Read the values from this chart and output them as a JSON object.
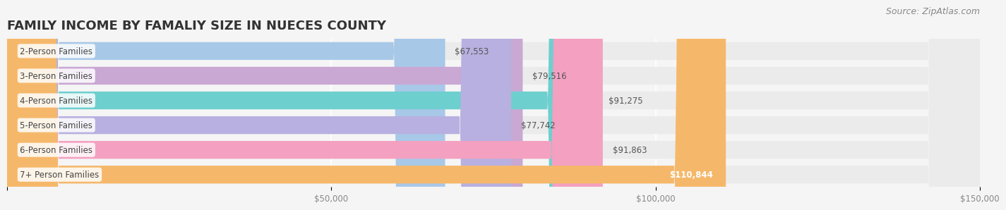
{
  "title": "FAMILY INCOME BY FAMALIY SIZE IN NUECES COUNTY",
  "source": "Source: ZipAtlas.com",
  "categories": [
    "2-Person Families",
    "3-Person Families",
    "4-Person Families",
    "5-Person Families",
    "6-Person Families",
    "7+ Person Families"
  ],
  "values": [
    67553,
    79516,
    91275,
    77742,
    91863,
    110844
  ],
  "bar_colors": [
    "#a8c8e8",
    "#c9a8d4",
    "#6ecfcf",
    "#b8b0e0",
    "#f4a0c0",
    "#f5b86a"
  ],
  "label_colors": [
    "#a8c8e8",
    "#c9a8d4",
    "#6ecfcf",
    "#b8b0e0",
    "#f4a0c0",
    "#f5b86a"
  ],
  "value_labels": [
    "$67,553",
    "$79,516",
    "$91,275",
    "$77,742",
    "$91,863",
    "$110,844"
  ],
  "xlim": [
    0,
    150000
  ],
  "xticks": [
    0,
    50000,
    100000,
    150000
  ],
  "xtick_labels": [
    "",
    "$50,000",
    "$100,000",
    "$150,000"
  ],
  "background_color": "#f5f5f5",
  "bar_background_color": "#ebebeb",
  "title_fontsize": 13,
  "source_fontsize": 9
}
